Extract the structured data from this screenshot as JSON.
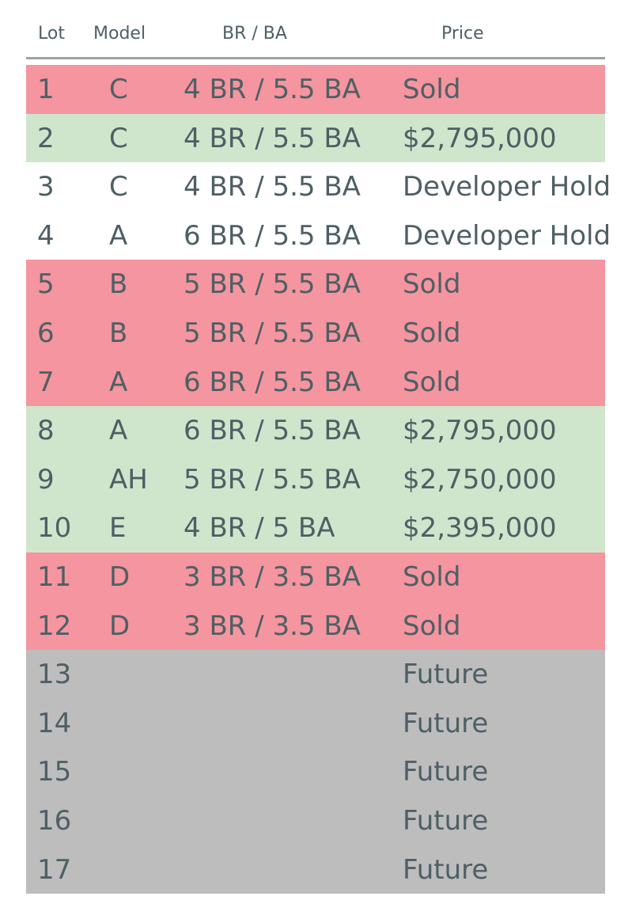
{
  "table": {
    "headers": {
      "lot": "Lot",
      "model": "Model",
      "brba": "BR / BA",
      "price": "Price"
    },
    "colors": {
      "sold": "#f4959f",
      "available": "#d0e6cc",
      "hold": "#ffffff",
      "future": "#bdbdbd",
      "text": "#4e5f64"
    },
    "rows": [
      {
        "lot": "1",
        "model": "C",
        "brba": "4 BR / 5.5 BA",
        "price": "Sold",
        "status": "sold"
      },
      {
        "lot": "2",
        "model": "C",
        "brba": "4 BR / 5.5 BA",
        "price": "$2,795,000",
        "status": "available"
      },
      {
        "lot": "3",
        "model": "C",
        "brba": "4 BR / 5.5 BA",
        "price": "Developer Hold",
        "status": "hold"
      },
      {
        "lot": "4",
        "model": "A",
        "brba": "6 BR / 5.5 BA",
        "price": "Developer Hold",
        "status": "hold"
      },
      {
        "lot": "5",
        "model": "B",
        "brba": "5 BR / 5.5 BA",
        "price": "Sold",
        "status": "sold"
      },
      {
        "lot": "6",
        "model": "B",
        "brba": "5 BR / 5.5 BA",
        "price": "Sold",
        "status": "sold"
      },
      {
        "lot": "7",
        "model": "A",
        "brba": "6 BR / 5.5 BA",
        "price": "Sold",
        "status": "sold"
      },
      {
        "lot": "8",
        "model": "A",
        "brba": "6 BR / 5.5 BA",
        "price": "$2,795,000",
        "status": "available"
      },
      {
        "lot": "9",
        "model": "AH",
        "brba": "5 BR / 5.5 BA",
        "price": "$2,750,000",
        "status": "available"
      },
      {
        "lot": "10",
        "model": "E",
        "brba": "4 BR / 5 BA",
        "price": "$2,395,000",
        "status": "available"
      },
      {
        "lot": "11",
        "model": "D",
        "brba": "3 BR / 3.5 BA",
        "price": "Sold",
        "status": "sold"
      },
      {
        "lot": "12",
        "model": "D",
        "brba": "3 BR / 3.5 BA",
        "price": "Sold",
        "status": "sold"
      },
      {
        "lot": "13",
        "model": "",
        "brba": "",
        "price": "Future",
        "status": "future"
      },
      {
        "lot": "14",
        "model": "",
        "brba": "",
        "price": "Future",
        "status": "future"
      },
      {
        "lot": "15",
        "model": "",
        "brba": "",
        "price": "Future",
        "status": "future"
      },
      {
        "lot": "16",
        "model": "",
        "brba": "",
        "price": "Future",
        "status": "future"
      },
      {
        "lot": "17",
        "model": "",
        "brba": "",
        "price": "Future",
        "status": "future"
      }
    ]
  }
}
